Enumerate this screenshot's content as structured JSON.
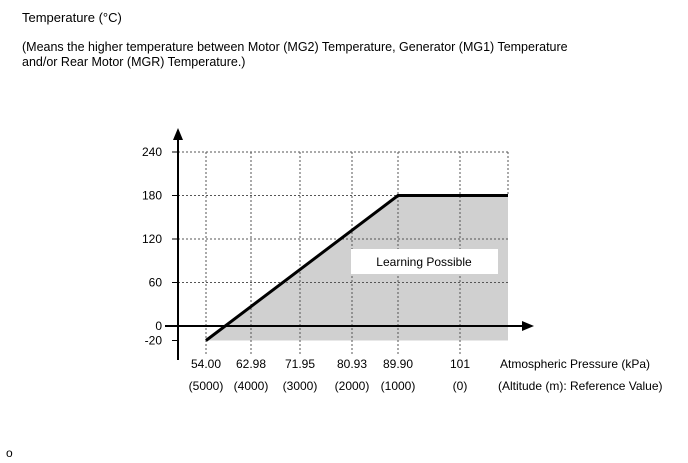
{
  "header": {
    "title": "Temperature (°C)",
    "note_line1": "(Means the higher temperature between Motor (MG2) Temperature, Generator (MG1) Temperature",
    "note_line2": "and/or Rear Motor (MGR) Temperature.)"
  },
  "chart_data": {
    "type": "area",
    "ylabel": "Temperature (°C)",
    "xlabel": "Atmospheric Pressure (kPa)",
    "x2label": "(Altitude (m): Reference Value)",
    "x_ticks": [
      "54.00",
      "62.98",
      "71.95",
      "80.93",
      "89.90",
      "101"
    ],
    "x2_ticks": [
      "(5000)",
      "(4000)",
      "(3000)",
      "(2000)",
      "(1000)",
      "(0)"
    ],
    "y_ticks": [
      "240",
      "180",
      "120",
      "60",
      "0",
      "-20"
    ],
    "y_values": [
      240,
      180,
      120,
      60,
      0,
      -20
    ],
    "ylim": [
      -20,
      240
    ],
    "series": [
      {
        "x": [
          54.0,
          89.9,
          101
        ],
        "y": [
          -20,
          180,
          180
        ]
      }
    ],
    "annotation": "Learning Possible",
    "colors": {
      "fill": "#d0d0d0",
      "line": "#000000"
    },
    "grid": true
  },
  "footer": {
    "mark": "o"
  }
}
